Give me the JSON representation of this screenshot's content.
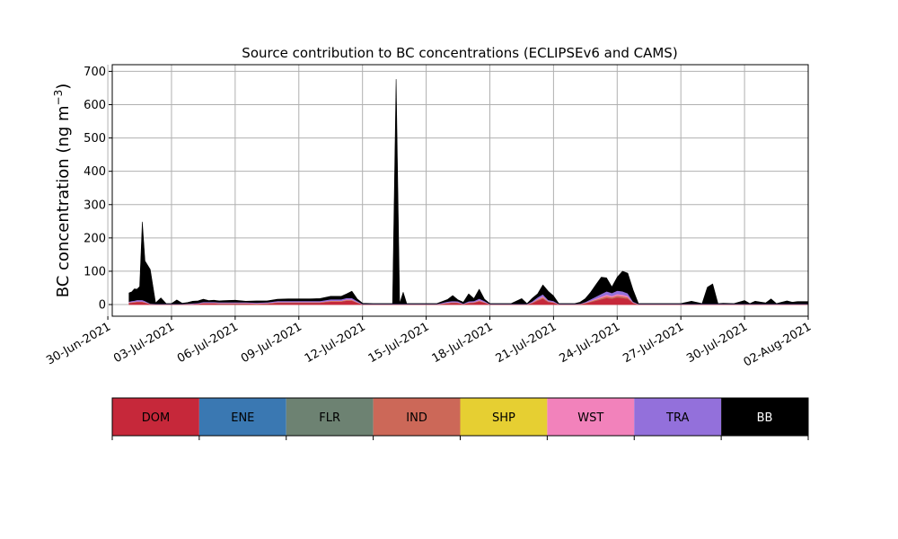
{
  "chart_data": {
    "type": "area",
    "title": "Source contribution to BC concentrations (ECLIPSEv6 and CAMS)",
    "ylabel": "BC concentration (ng m",
    "ylabel_sup": "−3",
    "ylabel_close": ")",
    "xlabel": "",
    "stacked": true,
    "grid": true,
    "ylim": [
      -35,
      720
    ],
    "yticks": [
      0,
      100,
      200,
      300,
      400,
      500,
      600,
      700
    ],
    "xlim": [
      "2021-06-30T05:00",
      "2021-08-02T00:00"
    ],
    "xticks": [
      "2021-06-30",
      "2021-07-03",
      "2021-07-06",
      "2021-07-09",
      "2021-07-12",
      "2021-07-15",
      "2021-07-18",
      "2021-07-21",
      "2021-07-24",
      "2021-07-27",
      "2021-07-30",
      "2021-08-02"
    ],
    "xtick_labels": [
      "30-Jun-2021",
      "03-Jul-2021",
      "06-Jul-2021",
      "09-Jul-2021",
      "12-Jul-2021",
      "15-Jul-2021",
      "18-Jul-2021",
      "21-Jul-2021",
      "24-Jul-2021",
      "27-Jul-2021",
      "30-Jul-2021",
      "02-Aug-2021"
    ],
    "legend_placement": "bottom colorbar",
    "x": [
      "2021-07-01T00:00",
      "2021-07-01T03:00",
      "2021-07-01T06:00",
      "2021-07-01T09:00",
      "2021-07-01T12:00",
      "2021-07-01T15:00",
      "2021-07-01T18:00",
      "2021-07-02T00:00",
      "2021-07-02T06:00",
      "2021-07-02T12:00",
      "2021-07-02T18:00",
      "2021-07-03T00:00",
      "2021-07-03T06:00",
      "2021-07-03T12:00",
      "2021-07-03T18:00",
      "2021-07-04T00:00",
      "2021-07-04T06:00",
      "2021-07-04T12:00",
      "2021-07-04T18:00",
      "2021-07-05T00:00",
      "2021-07-05T06:00",
      "2021-07-05T12:00",
      "2021-07-06T00:00",
      "2021-07-06T12:00",
      "2021-07-07T00:00",
      "2021-07-07T12:00",
      "2021-07-08T00:00",
      "2021-07-08T12:00",
      "2021-07-09T00:00",
      "2021-07-09T12:00",
      "2021-07-10T00:00",
      "2021-07-10T12:00",
      "2021-07-11T00:00",
      "2021-07-11T06:00",
      "2021-07-11T12:00",
      "2021-07-11T18:00",
      "2021-07-12T00:00",
      "2021-07-12T12:00",
      "2021-07-13T00:00",
      "2021-07-13T06:00",
      "2021-07-13T10:00",
      "2021-07-13T14:00",
      "2021-07-13T18:00",
      "2021-07-13T22:00",
      "2021-07-14T02:00",
      "2021-07-14T06:00",
      "2021-07-14T12:00",
      "2021-07-15T00:00",
      "2021-07-15T12:00",
      "2021-07-16T00:00",
      "2021-07-16T06:00",
      "2021-07-16T12:00",
      "2021-07-16T18:00",
      "2021-07-17T00:00",
      "2021-07-17T06:00",
      "2021-07-17T12:00",
      "2021-07-17T18:00",
      "2021-07-18T00:00",
      "2021-07-18T12:00",
      "2021-07-19T00:00",
      "2021-07-19T12:00",
      "2021-07-19T18:00",
      "2021-07-20T00:00",
      "2021-07-20T06:00",
      "2021-07-20T12:00",
      "2021-07-20T18:00",
      "2021-07-21T00:00",
      "2021-07-21T06:00",
      "2021-07-21T12:00",
      "2021-07-21T18:00",
      "2021-07-22T00:00",
      "2021-07-22T06:00",
      "2021-07-22T12:00",
      "2021-07-22T18:00",
      "2021-07-23T00:00",
      "2021-07-23T06:00",
      "2021-07-23T12:00",
      "2021-07-23T18:00",
      "2021-07-24T00:00",
      "2021-07-24T06:00",
      "2021-07-24T12:00",
      "2021-07-24T18:00",
      "2021-07-25T00:00",
      "2021-07-25T06:00",
      "2021-07-25T12:00",
      "2021-07-25T18:00",
      "2021-07-26T00:00",
      "2021-07-26T12:00",
      "2021-07-27T00:00",
      "2021-07-27T12:00",
      "2021-07-28T00:00",
      "2021-07-28T06:00",
      "2021-07-28T12:00",
      "2021-07-28T18:00",
      "2021-07-29T00:00",
      "2021-07-29T12:00",
      "2021-07-30T00:00",
      "2021-07-30T06:00",
      "2021-07-30T12:00",
      "2021-07-31T00:00",
      "2021-07-31T06:00",
      "2021-07-31T12:00",
      "2021-08-01T00:00",
      "2021-08-01T06:00",
      "2021-08-01T12:00",
      "2021-08-01T18:00",
      "2021-08-02T00:00"
    ],
    "series": [
      {
        "name": "DOM",
        "color": "#c6283a",
        "values": [
          5,
          6,
          7,
          8,
          8,
          8,
          6,
          2,
          1,
          1,
          1,
          1,
          1,
          1,
          2,
          2,
          3,
          4,
          4,
          4,
          3,
          3,
          3,
          3,
          2,
          3,
          6,
          6,
          6,
          6,
          6,
          9,
          9,
          12,
          12,
          6,
          1,
          1,
          1,
          1,
          1,
          1,
          1,
          1,
          1,
          1,
          1,
          1,
          1,
          4,
          6,
          5,
          2,
          5,
          6,
          10,
          6,
          1,
          1,
          1,
          1,
          1,
          5,
          12,
          18,
          8,
          6,
          1,
          1,
          1,
          1,
          2,
          4,
          8,
          12,
          16,
          20,
          18,
          22,
          20,
          18,
          5,
          1,
          1,
          1,
          1,
          1,
          1,
          1,
          1,
          1,
          1,
          1,
          1,
          1,
          1,
          1,
          1,
          1,
          1,
          1,
          1,
          1,
          1,
          1,
          1,
          1
        ]
      },
      {
        "name": "ENE",
        "color": "#3a78b2",
        "values": [
          0,
          0,
          0,
          0,
          0,
          0,
          0,
          0,
          0,
          0,
          0,
          0,
          0,
          0,
          0,
          0,
          0,
          0,
          0,
          0,
          0,
          0,
          0,
          0,
          0,
          0,
          0,
          0,
          0,
          0,
          0,
          0,
          0,
          0,
          0,
          0,
          0,
          0,
          0,
          0,
          0,
          0,
          0,
          0,
          0,
          0,
          0,
          0,
          0,
          0,
          0,
          0,
          0,
          0,
          0,
          0,
          0,
          0,
          0,
          0,
          0,
          0,
          0,
          0,
          0,
          0,
          0,
          0,
          0,
          0,
          0,
          0,
          0,
          0,
          0,
          0,
          0,
          0,
          0,
          0,
          0,
          0,
          0,
          0,
          0,
          0,
          0,
          0,
          0,
          0,
          0,
          0,
          0,
          0,
          0,
          0,
          0,
          0,
          0,
          0,
          0,
          0,
          0,
          0,
          0,
          0,
          0
        ]
      },
      {
        "name": "FLR",
        "color": "#6d8272",
        "values": [
          0,
          0,
          0,
          0,
          0,
          0,
          0,
          0,
          0,
          0,
          0,
          0,
          0,
          0,
          0,
          0,
          0,
          0,
          0,
          0,
          0,
          0,
          0,
          0,
          0,
          0,
          0,
          0,
          0,
          0,
          0,
          0,
          0,
          0,
          0,
          0,
          0,
          0,
          0,
          0,
          0,
          0,
          0,
          0,
          0,
          0,
          0,
          0,
          0,
          0,
          0,
          0,
          0,
          0,
          0,
          0,
          0,
          0,
          0,
          0,
          0,
          0,
          0,
          0,
          0,
          0,
          0,
          0,
          0,
          0,
          0,
          0,
          0,
          0,
          0,
          0,
          0,
          0,
          0,
          0,
          0,
          0,
          0,
          0,
          0,
          0,
          0,
          0,
          0,
          0,
          0,
          0,
          0,
          0,
          0,
          0,
          0,
          0,
          0,
          0,
          0,
          0,
          0,
          0,
          0,
          0,
          0
        ]
      },
      {
        "name": "IND",
        "color": "#cc6858",
        "values": [
          1,
          1,
          1,
          1,
          1,
          1,
          1,
          0,
          0,
          0,
          0,
          0,
          0,
          0,
          0,
          0,
          0,
          1,
          1,
          1,
          1,
          1,
          1,
          1,
          1,
          1,
          1,
          1,
          1,
          1,
          1,
          2,
          2,
          2,
          2,
          1,
          0,
          0,
          0,
          0,
          0,
          0,
          0,
          0,
          0,
          0,
          0,
          0,
          0,
          1,
          1,
          1,
          0,
          1,
          1,
          2,
          1,
          0,
          0,
          0,
          0,
          0,
          1,
          3,
          4,
          2,
          1,
          0,
          0,
          0,
          0,
          0,
          1,
          2,
          3,
          4,
          5,
          4,
          5,
          5,
          4,
          1,
          0,
          0,
          0,
          0,
          0,
          0,
          0,
          0,
          0,
          0,
          0,
          0,
          0,
          0,
          0,
          0,
          0,
          0,
          0,
          0,
          0,
          0,
          0,
          0,
          0
        ]
      },
      {
        "name": "SHP",
        "color": "#e6cf32",
        "values": [
          0,
          0,
          0,
          0,
          0,
          0,
          0,
          0,
          0,
          0,
          0,
          0,
          0,
          0,
          0,
          0,
          0,
          0,
          0,
          0,
          0,
          0,
          0,
          0,
          0,
          0,
          0,
          0,
          0,
          0,
          0,
          0,
          0,
          0,
          0,
          0,
          0,
          0,
          0,
          0,
          0,
          0,
          0,
          0,
          0,
          0,
          0,
          0,
          0,
          0,
          0,
          0,
          0,
          0,
          0,
          0,
          0,
          0,
          0,
          0,
          0,
          0,
          0,
          0,
          0,
          0,
          0,
          0,
          0,
          0,
          0,
          0,
          0,
          0,
          0,
          0,
          0,
          0,
          0,
          0,
          0,
          0,
          0,
          0,
          0,
          0,
          0,
          0,
          0,
          0,
          0,
          0,
          0,
          0,
          0,
          0,
          0,
          0,
          0,
          0,
          0,
          0,
          0,
          0,
          0,
          0,
          0
        ]
      },
      {
        "name": "WST",
        "color": "#f282bb",
        "values": [
          1,
          1,
          1,
          1,
          1,
          1,
          1,
          0,
          0,
          0,
          0,
          0,
          0,
          0,
          0,
          0,
          0,
          1,
          1,
          1,
          1,
          1,
          1,
          1,
          1,
          1,
          1,
          1,
          1,
          1,
          1,
          1,
          1,
          2,
          2,
          1,
          0,
          0,
          0,
          0,
          0,
          0,
          0,
          0,
          0,
          0,
          0,
          0,
          0,
          1,
          1,
          1,
          0,
          1,
          1,
          2,
          1,
          0,
          0,
          0,
          0,
          0,
          1,
          2,
          3,
          1,
          1,
          0,
          0,
          0,
          0,
          0,
          1,
          2,
          3,
          4,
          5,
          4,
          5,
          5,
          4,
          1,
          0,
          0,
          0,
          0,
          0,
          0,
          0,
          0,
          0,
          0,
          0,
          0,
          0,
          0,
          0,
          0,
          0,
          0,
          0,
          0,
          0,
          0,
          0,
          0,
          0
        ]
      },
      {
        "name": "TRA",
        "color": "#9370db",
        "values": [
          2,
          3,
          3,
          4,
          4,
          4,
          3,
          1,
          1,
          1,
          1,
          1,
          1,
          1,
          1,
          2,
          2,
          2,
          2,
          2,
          2,
          2,
          2,
          2,
          2,
          2,
          3,
          3,
          3,
          3,
          3,
          4,
          4,
          4,
          4,
          3,
          1,
          1,
          1,
          1,
          1,
          1,
          1,
          1,
          1,
          1,
          1,
          1,
          1,
          3,
          3,
          3,
          1,
          3,
          3,
          4,
          3,
          1,
          1,
          1,
          1,
          1,
          3,
          5,
          6,
          3,
          3,
          1,
          1,
          1,
          1,
          1,
          2,
          4,
          6,
          8,
          10,
          9,
          10,
          10,
          8,
          2,
          1,
          1,
          1,
          1,
          1,
          1,
          1,
          1,
          1,
          1,
          1,
          1,
          1,
          1,
          1,
          1,
          1,
          1,
          1,
          1,
          1,
          1,
          1,
          1,
          1
        ]
      },
      {
        "name": "BB",
        "color": "#000000",
        "values": [
          26,
          27,
          35,
          32,
          40,
          234,
          120,
          102,
          3,
          18,
          1,
          1,
          12,
          2,
          3,
          6,
          6,
          8,
          4,
          5,
          4,
          5,
          6,
          3,
          5,
          4,
          5,
          6,
          6,
          6,
          7,
          9,
          9,
          12,
          20,
          6,
          2,
          1,
          1,
          1,
          1,
          674,
          1,
          35,
          1,
          1,
          1,
          1,
          1,
          6,
          16,
          4,
          4,
          22,
          7,
          28,
          5,
          1,
          1,
          1,
          16,
          1,
          9,
          10,
          28,
          26,
          15,
          1,
          1,
          1,
          1,
          4,
          10,
          21,
          36,
          50,
          40,
          18,
          40,
          60,
          60,
          35,
          1,
          1,
          1,
          1,
          1,
          1,
          1,
          8,
          1,
          50,
          60,
          1,
          2,
          1,
          10,
          1,
          8,
          3,
          15,
          1,
          9,
          5,
          7,
          7,
          7
        ]
      }
    ]
  }
}
